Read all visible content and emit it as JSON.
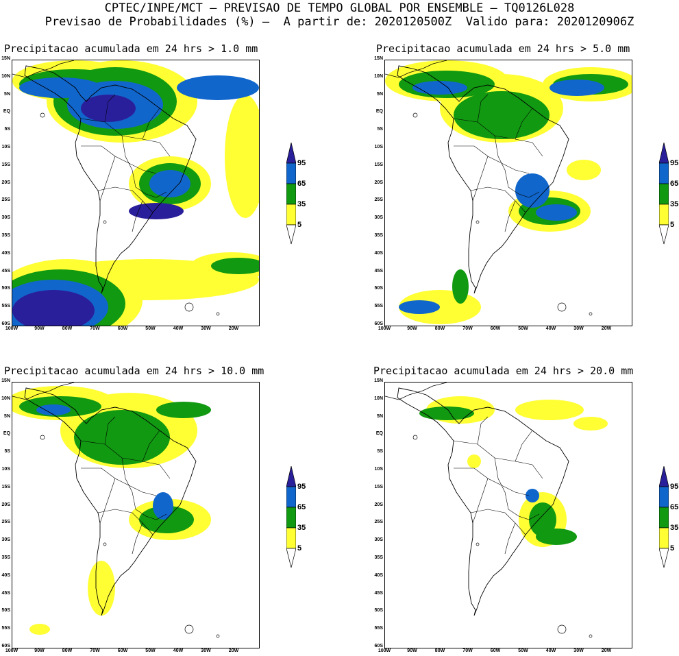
{
  "header": {
    "line1": "CPTEC/INPE/MCT — PREVISAO DE TEMPO GLOBAL POR ENSEMBLE — TQ0126L028",
    "line2": "Previsao de Probabilidades (%) —  A partir de: 2020120500Z  Valido para: 2020120906Z"
  },
  "colors": {
    "c5": "#ffff33",
    "c35": "#119911",
    "c65": "#1166cc",
    "c95": "#2a1f9a",
    "coast": "#000000"
  },
  "lat_labels": [
    "15N",
    "10N",
    "5N",
    "EQ",
    "5S",
    "10S",
    "15S",
    "20S",
    "25S",
    "30S",
    "35S",
    "40S",
    "45S",
    "50S",
    "55S",
    "60S"
  ],
  "lon_labels": [
    "100W",
    "90W",
    "80W",
    "70W",
    "60W",
    "50W",
    "40W",
    "30W",
    "20W"
  ],
  "legend_labels": [
    "95",
    "65",
    "35",
    "5"
  ],
  "panels": [
    {
      "title": "Precipitacao acumulada em 24 hrs > 1.0 mm"
    },
    {
      "title": "Precipitacao acumulada em 24 hrs > 5.0 mm"
    },
    {
      "title": "Precipitacao acumulada em 24 hrs > 10.0 mm"
    },
    {
      "title": "Precipitacao acumulada em 24 hrs > 20.0 mm"
    }
  ]
}
